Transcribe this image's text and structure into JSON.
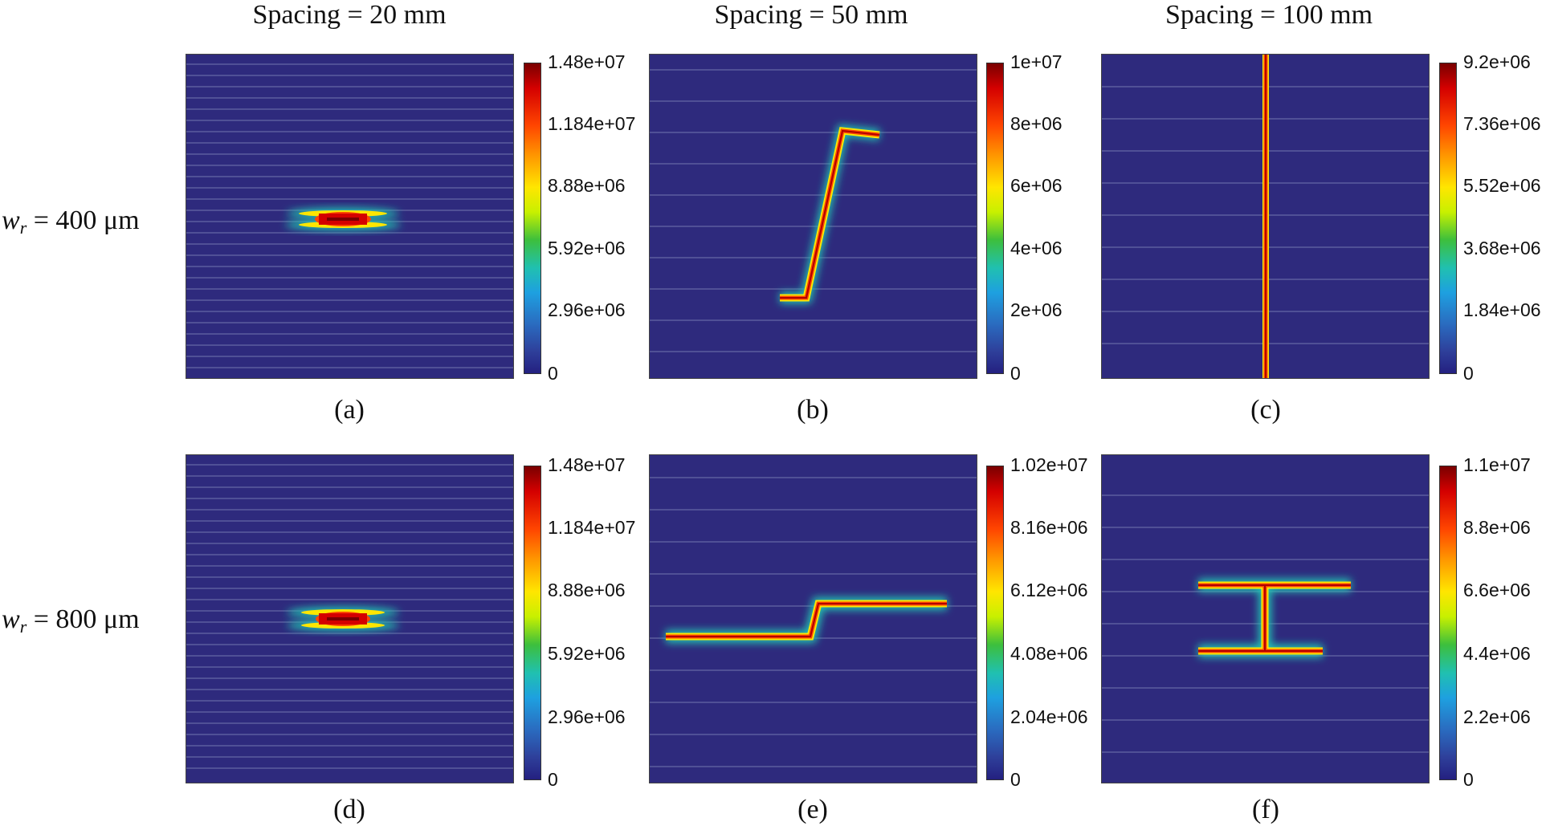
{
  "column_titles": [
    "Spacing = 20 mm",
    "Spacing = 50 mm",
    "Spacing = 100 mm"
  ],
  "row_labels": [
    {
      "symbol": "w",
      "subscript": "r",
      "value": "= 400 μm"
    },
    {
      "symbol": "w",
      "subscript": "r",
      "value": "= 800 μm"
    }
  ],
  "panels": [
    {
      "id": "a",
      "caption": "(a)",
      "ticks": [
        "1.48e+07",
        "1.184e+07",
        "8.88e+06",
        "5.92e+06",
        "2.96e+06",
        "0"
      ],
      "max": 14800000.0,
      "pattern": "central-small"
    },
    {
      "id": "b",
      "caption": "(b)",
      "ticks": [
        "1e+07",
        "8e+06",
        "6e+06",
        "4e+06",
        "2e+06",
        "0"
      ],
      "max": 10000000.0,
      "pattern": "diagonal"
    },
    {
      "id": "c",
      "caption": "(c)",
      "ticks": [
        "9.2e+06",
        "7.36e+06",
        "5.52e+06",
        "3.68e+06",
        "1.84e+06",
        "0"
      ],
      "max": 9200000.0,
      "pattern": "vertical-full"
    },
    {
      "id": "d",
      "caption": "(d)",
      "ticks": [
        "1.48e+07",
        "1.184e+07",
        "8.88e+06",
        "5.92e+06",
        "2.96e+06",
        "0"
      ],
      "max": 14800000.0,
      "pattern": "central-small"
    },
    {
      "id": "e",
      "caption": "(e)",
      "ticks": [
        "1.02e+07",
        "8.16e+06",
        "6.12e+06",
        "4.08e+06",
        "2.04e+06",
        "0"
      ],
      "max": 10200000.0,
      "pattern": "step"
    },
    {
      "id": "f",
      "caption": "(f)",
      "ticks": [
        "1.1e+07",
        "8.8e+06",
        "6.6e+06",
        "4.4e+06",
        "2.2e+06",
        "0"
      ],
      "max": 11000000.0,
      "pattern": "i-beam"
    }
  ],
  "colors": {
    "background_field": "#2e2a7d",
    "crack_core": "#b00000",
    "colormap": [
      "#7a0000",
      "#d40000",
      "#ff4500",
      "#ff9900",
      "#ffe600",
      "#c8f000",
      "#3dbf3d",
      "#20c0b0",
      "#1ea0e0",
      "#2a6cc0",
      "#2e3f9a",
      "#242080"
    ]
  }
}
